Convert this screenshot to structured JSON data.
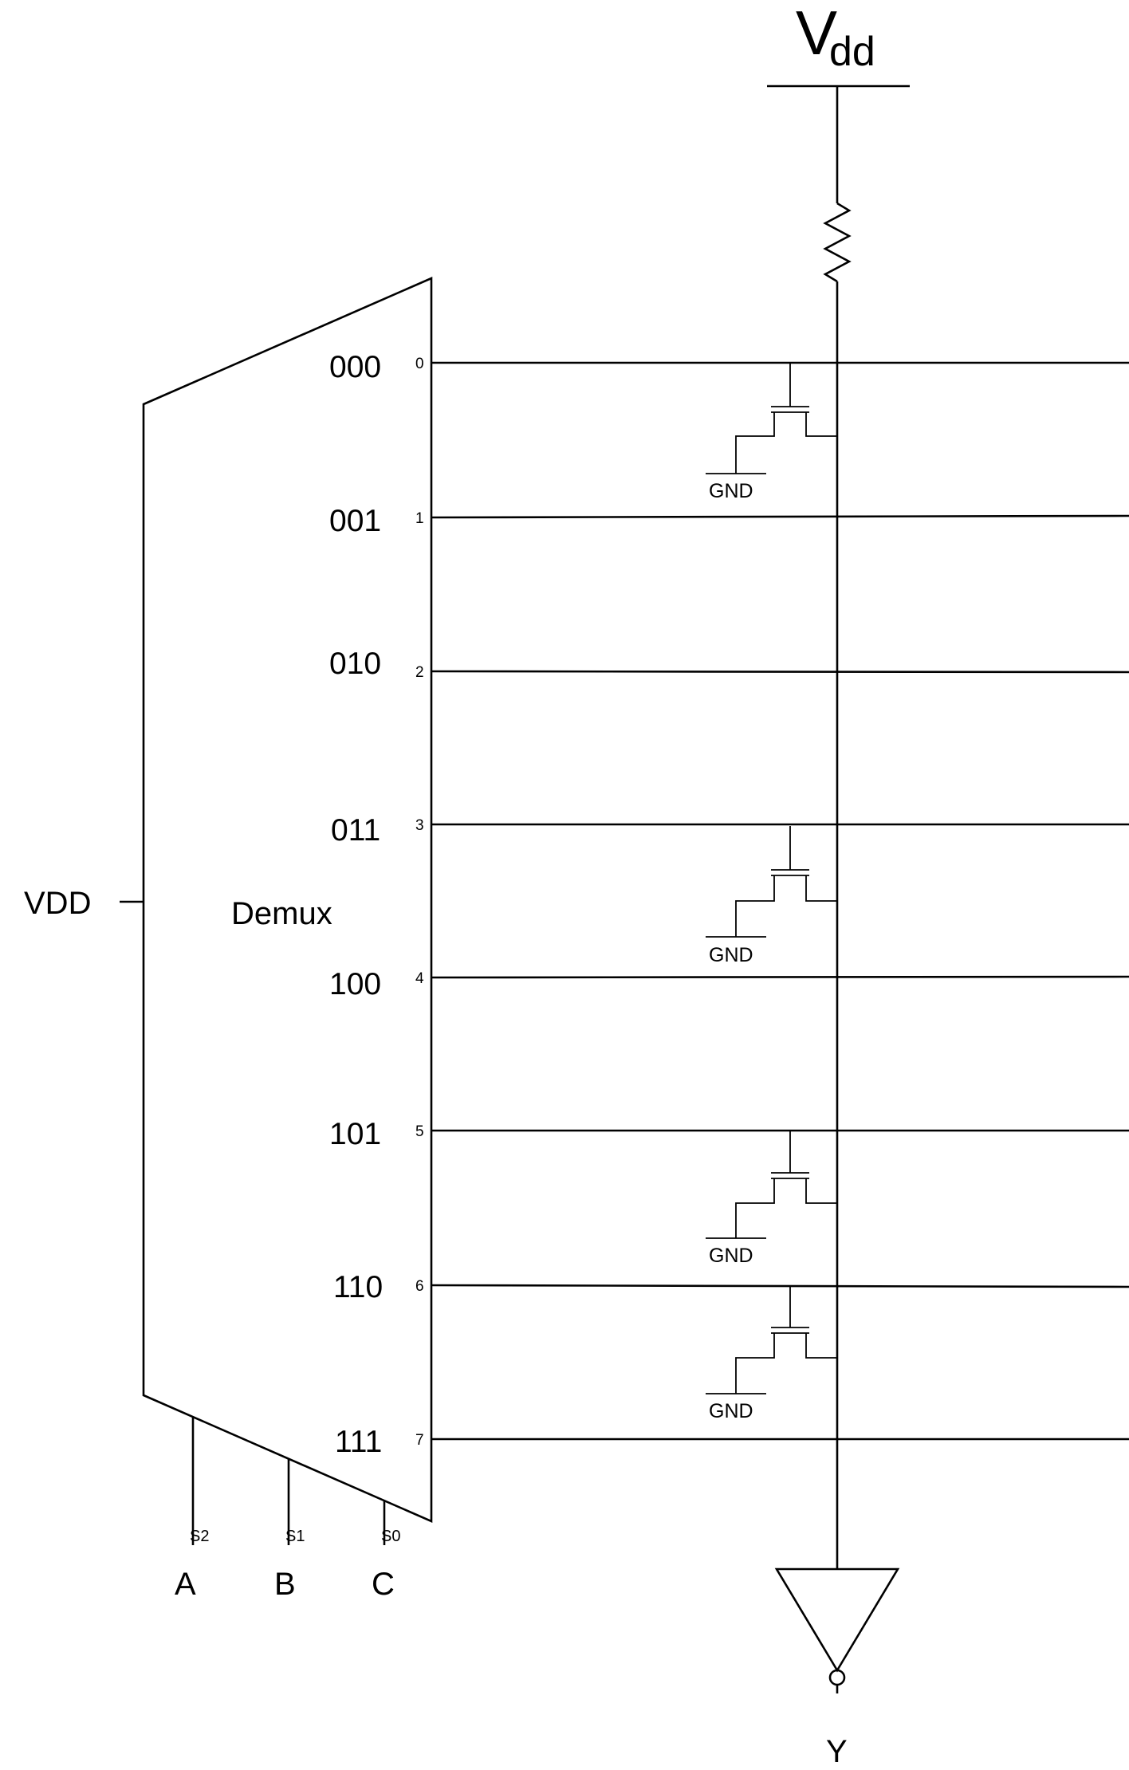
{
  "supply": {
    "label": "V",
    "subscript": "dd"
  },
  "demux": {
    "label": "Demux",
    "input_label": "VDD",
    "outputs": [
      {
        "code": "000",
        "index": "0",
        "transistor": true
      },
      {
        "code": "001",
        "index": "1",
        "transistor": false
      },
      {
        "code": "010",
        "index": "2",
        "transistor": false
      },
      {
        "code": "011",
        "index": "3",
        "transistor": true
      },
      {
        "code": "100",
        "index": "4",
        "transistor": false
      },
      {
        "code": "101",
        "index": "5",
        "transistor": true
      },
      {
        "code": "110",
        "index": "6",
        "transistor": true
      },
      {
        "code": "111",
        "index": "7",
        "transistor": false
      }
    ],
    "selects": [
      {
        "pin": "S2",
        "input": "A"
      },
      {
        "pin": "S1",
        "input": "B"
      },
      {
        "pin": "S0",
        "input": "C"
      }
    ]
  },
  "ground_label": "GND",
  "output_label": "Y"
}
